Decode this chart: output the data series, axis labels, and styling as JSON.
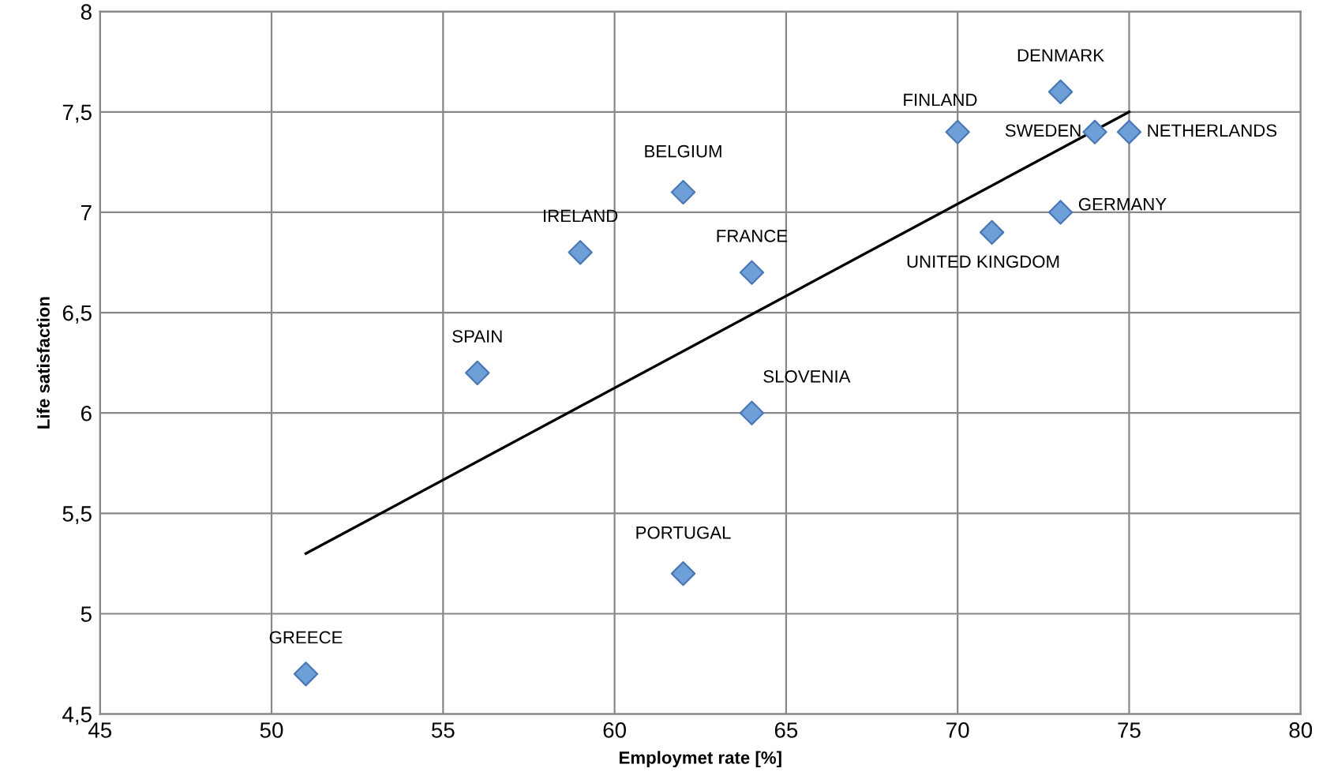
{
  "chart_data": {
    "type": "scatter",
    "xlabel": "Employmet rate [%]",
    "ylabel": "Life satisfaction",
    "series": [
      {
        "color": "#6f9fd8",
        "marker": "diamond",
        "x": [
          51,
          56,
          59,
          62,
          62,
          64,
          64,
          70,
          71,
          73,
          73,
          74,
          75
        ],
        "values": [
          4.7,
          6.2,
          6.8,
          7.1,
          5.2,
          6.7,
          6.0,
          7.4,
          6.9,
          7.6,
          7.0,
          7.4,
          7.4
        ]
      },
      {
        "type": "line",
        "color": "#000000",
        "marker": "none",
        "x": [
          51,
          75
        ],
        "values": [
          5.3,
          7.5
        ]
      }
    ],
    "annotations": [
      {
        "text": "GREECE",
        "x": 51,
        "y": 4.7
      },
      {
        "text": "SPAIN",
        "x": 56,
        "y": 6.2
      },
      {
        "text": "IRELAND",
        "x": 59,
        "y": 6.8
      },
      {
        "text": "BELGIUM",
        "x": 62,
        "y": 7.1
      },
      {
        "text": "PORTUGAL",
        "x": 62,
        "y": 5.2
      },
      {
        "text": "FRANCE",
        "x": 64,
        "y": 6.7
      },
      {
        "text": "SLOVENIA",
        "x": 64,
        "y": 6.0
      },
      {
        "text": "FINLAND",
        "x": 70,
        "y": 7.4
      },
      {
        "text": "UNITED KINGDOM",
        "x": 71,
        "y": 6.9
      },
      {
        "text": "DENMARK",
        "x": 73,
        "y": 7.6
      },
      {
        "text": "GERMANY",
        "x": 73,
        "y": 7.0
      },
      {
        "text": "SWEDEN",
        "x": 74,
        "y": 7.4
      },
      {
        "text": "NETHERLANDS",
        "x": 75,
        "y": 7.4
      }
    ],
    "xlim": [
      45,
      80
    ],
    "xticks": [
      45,
      50,
      55,
      60,
      65,
      70,
      75,
      80
    ],
    "ylim": [
      4.5,
      8
    ],
    "yticks": [
      {
        "value": 4.5,
        "label": "4,5"
      },
      5,
      {
        "value": 5.5,
        "label": "5,5"
      },
      6,
      {
        "value": 6.5,
        "label": "6,5"
      },
      7,
      {
        "value": 7.5,
        "label": "7,5"
      },
      8
    ],
    "grid": true,
    "legend": false
  }
}
